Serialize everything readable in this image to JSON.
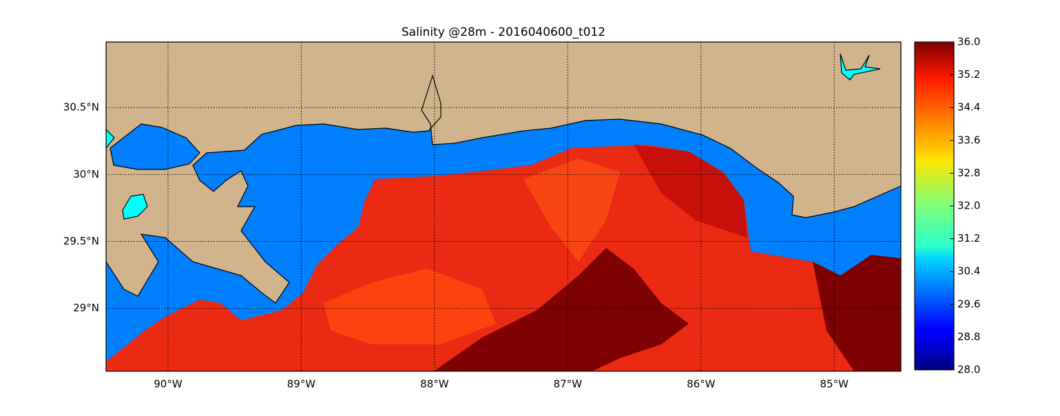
{
  "chart_data": {
    "type": "map",
    "title": "Salinity @28m - 2016040600_t012",
    "xlim": [
      -90.465,
      -84.5
    ],
    "ylim": [
      28.53,
      30.99
    ],
    "xticks": [
      {
        "value": -90,
        "label": "90°W"
      },
      {
        "value": -89,
        "label": "89°W"
      },
      {
        "value": -88,
        "label": "88°W"
      },
      {
        "value": -87,
        "label": "87°W"
      },
      {
        "value": -86,
        "label": "86°W"
      },
      {
        "value": -85,
        "label": "85°W"
      }
    ],
    "yticks": [
      {
        "value": 29,
        "label": "29°N"
      },
      {
        "value": 29.5,
        "label": "29.5°N"
      },
      {
        "value": 30,
        "label": "30°N"
      },
      {
        "value": 30.5,
        "label": "30.5°N"
      }
    ],
    "grid": true,
    "colorbar": {
      "lim": [
        28,
        36
      ],
      "ticks": [
        {
          "value": 28,
          "label": "28.0"
        },
        28.8,
        29.6,
        30.4,
        31.2,
        {
          "value": 32,
          "label": "32.0"
        },
        32.8,
        33.6,
        34.4,
        35.2,
        {
          "value": 36,
          "label": "36.0"
        }
      ]
    }
  }
}
